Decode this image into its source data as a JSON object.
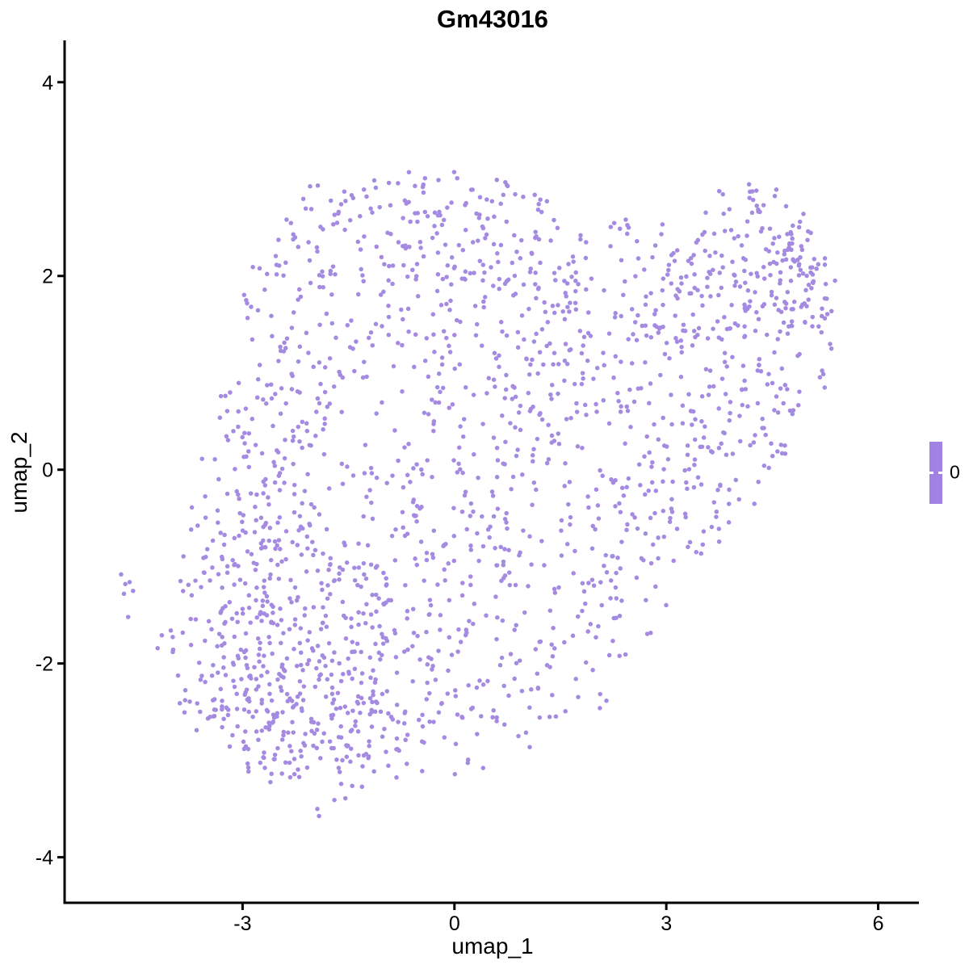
{
  "title": "Gm43016",
  "legend": {
    "tick_label": "0",
    "bar_color": "#a181e4",
    "tick_mark_color": "#ffffff",
    "position": "right"
  },
  "chart_data": {
    "type": "scatter",
    "title": "Gm43016",
    "xlabel": "umap_1",
    "ylabel": "umap_2",
    "xlim": [
      -5.52,
      6.6
    ],
    "ylim": [
      -4.47,
      4.39
    ],
    "x_ticks": [
      -3,
      0,
      3,
      6
    ],
    "y_ticks": [
      -4,
      -2,
      0,
      2,
      4
    ],
    "grid": false,
    "axis_color": "#000000",
    "background": "#ffffff",
    "point_color": "#a48be1",
    "point_radius": 2.75,
    "legend_tick_labels": [
      "0"
    ],
    "expression_value_shown": 0,
    "seed": 101,
    "clusters": [
      [
        -2.6,
        1.2,
        0.75,
        0.9,
        180
      ],
      [
        -2.9,
        -0.6,
        0.7,
        0.8,
        170
      ],
      [
        -2.8,
        -2.3,
        0.85,
        0.65,
        260
      ],
      [
        -1.6,
        -2.6,
        0.8,
        0.55,
        150
      ],
      [
        -1.3,
        -1.2,
        0.9,
        0.8,
        140
      ],
      [
        -0.9,
        2.5,
        1.0,
        0.45,
        120
      ],
      [
        0.3,
        2.3,
        0.9,
        0.5,
        90
      ],
      [
        -0.3,
        0.8,
        1.0,
        0.9,
        110
      ],
      [
        0.1,
        -0.7,
        1.0,
        0.9,
        110
      ],
      [
        0.4,
        -2.2,
        0.9,
        0.6,
        110
      ],
      [
        1.5,
        0.3,
        0.8,
        0.9,
        80
      ],
      [
        1.3,
        1.6,
        0.9,
        0.6,
        70
      ],
      [
        2.5,
        1.9,
        0.8,
        0.6,
        80
      ],
      [
        3.1,
        0.6,
        0.6,
        0.8,
        60
      ],
      [
        2.6,
        -0.8,
        0.55,
        0.7,
        60
      ],
      [
        2.0,
        -1.6,
        0.5,
        0.5,
        45
      ],
      [
        4.3,
        2.2,
        0.75,
        0.55,
        160
      ],
      [
        4.8,
        1.2,
        0.5,
        0.8,
        90
      ],
      [
        4.0,
        0.2,
        0.6,
        0.6,
        50
      ],
      [
        3.3,
        -0.35,
        0.55,
        0.55,
        45
      ],
      [
        5.0,
        2.0,
        0.3,
        0.4,
        60
      ]
    ],
    "outlier_points": [
      [
        -4.72,
        -1.08
      ],
      [
        -4.66,
        -1.18
      ],
      [
        -4.6,
        -1.16
      ],
      [
        -4.68,
        -1.28
      ],
      [
        -4.55,
        -1.25
      ],
      [
        -4.62,
        -1.52
      ]
    ],
    "hull": [
      [
        -2.2,
        2.9
      ],
      [
        -0.5,
        3.18
      ],
      [
        0.7,
        3.1
      ],
      [
        1.9,
        2.5
      ],
      [
        3.0,
        2.7
      ],
      [
        4.4,
        3.15
      ],
      [
        5.0,
        2.6
      ],
      [
        5.45,
        1.9
      ],
      [
        5.3,
        0.8
      ],
      [
        4.6,
        -0.1
      ],
      [
        3.6,
        -1.0
      ],
      [
        2.6,
        -1.9
      ],
      [
        2.1,
        -2.45
      ],
      [
        1.0,
        -2.9
      ],
      [
        0.2,
        -3.2
      ],
      [
        -0.9,
        -3.3
      ],
      [
        -2.0,
        -3.6
      ],
      [
        -2.6,
        -3.35
      ],
      [
        -3.3,
        -2.9
      ],
      [
        -4.0,
        -2.5
      ],
      [
        -4.25,
        -1.9
      ],
      [
        -3.85,
        -0.9
      ],
      [
        -3.6,
        0.2
      ],
      [
        -3.1,
        1.2
      ],
      [
        -2.9,
        2.2
      ]
    ]
  }
}
